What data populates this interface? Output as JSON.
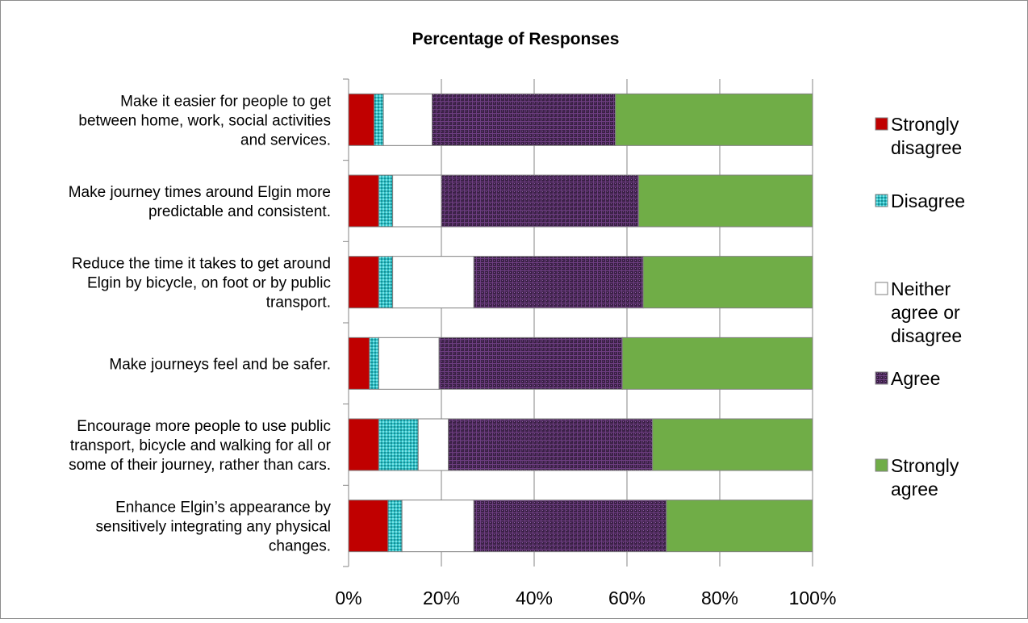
{
  "chart_data": {
    "type": "bar",
    "orientation": "horizontal",
    "stacked": "percent",
    "title": "Percentage of Responses",
    "categories": [
      [
        "Make it easier for people to get",
        "between home, work, social activities",
        "and services."
      ],
      [
        "Make journey times around Elgin more",
        "predictable and consistent."
      ],
      [
        "Reduce the time it takes to get around",
        "Elgin by bicycle, on foot or by public",
        "transport."
      ],
      [
        "Make journeys feel and be safer."
      ],
      [
        "Encourage more people to use public",
        "transport, bicycle and walking for all or",
        "some of their journey, rather than cars."
      ],
      [
        "Enhance Elgin’s appearance by",
        "sensitively integrating any physical",
        "changes."
      ]
    ],
    "series": [
      {
        "name": "Strongly disagree",
        "legend_lines": [
          "Strongly",
          "disagree"
        ],
        "color": "#C00000",
        "pattern": "solid",
        "values": [
          5.5,
          6.5,
          6.5,
          4.5,
          6.5,
          8.5
        ]
      },
      {
        "name": "Disagree",
        "legend_lines": [
          "Disagree"
        ],
        "color": "#2FC2C8",
        "pattern": "dots",
        "values": [
          2.0,
          3.0,
          3.0,
          2.0,
          8.5,
          3.0
        ]
      },
      {
        "name": "Neither agree or disagree",
        "legend_lines": [
          "Neither",
          "agree or",
          "disagree"
        ],
        "color": "#FFFFFF",
        "pattern": "solid",
        "values": [
          10.5,
          10.5,
          17.5,
          13.0,
          6.5,
          15.5
        ]
      },
      {
        "name": "Agree",
        "legend_lines": [
          "Agree"
        ],
        "color": "#3B2146",
        "pattern": "grid",
        "values": [
          39.5,
          42.5,
          36.5,
          39.5,
          44.0,
          41.5
        ]
      },
      {
        "name": "Strongly agree",
        "legend_lines": [
          "Strongly",
          "agree"
        ],
        "color": "#70AD47",
        "pattern": "solid",
        "values": [
          42.5,
          37.5,
          36.5,
          41.0,
          34.5,
          31.5
        ]
      }
    ],
    "x_ticks": [
      "0%",
      "20%",
      "40%",
      "60%",
      "80%",
      "100%"
    ],
    "xlim": [
      0,
      100
    ],
    "grid": true,
    "legend_position": "right"
  }
}
